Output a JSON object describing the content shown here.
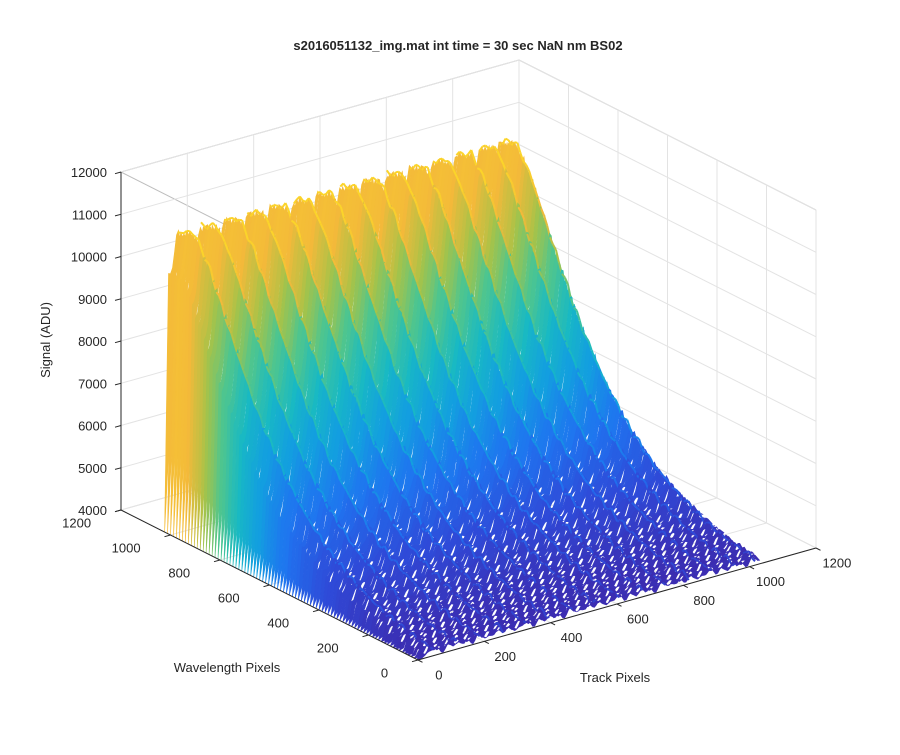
{
  "chart_data": {
    "type": "surface",
    "title": "s2016051132_img.mat int time = 30 sec  NaN nm BS02",
    "xlabel": "Track Pixels",
    "ylabel": "Wavelength Pixels",
    "zlabel": "Signal (ADU)",
    "xlim": [
      0,
      1200
    ],
    "ylim": [
      0,
      1200
    ],
    "zlim": [
      4000,
      12000
    ],
    "xticks": [
      "0",
      "200",
      "400",
      "600",
      "800",
      "1000",
      "1200"
    ],
    "yticks": [
      "0",
      "200",
      "400",
      "600",
      "800",
      "1000",
      "1200"
    ],
    "zticks": [
      "4000",
      "5000",
      "6000",
      "7000",
      "8000",
      "9000",
      "10000",
      "11000",
      "12000"
    ],
    "colormap": [
      "#3e26a8",
      "#2f4ad8",
      "#1f74f0",
      "#139ee0",
      "#18b9c4",
      "#4ec58f",
      "#a7c348",
      "#f3b93a",
      "#fbd42a"
    ],
    "grid": true,
    "surface_extent": {
      "track_pixels": [
        0,
        1024
      ],
      "wavelength_pixels": [
        0,
        1024
      ]
    },
    "profile_along_track": {
      "wavelength_pixel": [
        0,
        100,
        200,
        300,
        400,
        500,
        600,
        700,
        800,
        900,
        960,
        1024
      ],
      "peak_signal_ADU": [
        4200,
        4300,
        4500,
        4800,
        5200,
        5800,
        6600,
        7700,
        9100,
        10600,
        11200,
        11000
      ],
      "baseline_signal_ADU": [
        4100,
        4150,
        4250,
        4400,
        4600,
        4900,
        5300,
        6000,
        7100,
        8400,
        9300,
        9500
      ]
    },
    "track_peak_positions": [
      40,
      110,
      180,
      250,
      320,
      390,
      460,
      530,
      600,
      670,
      740,
      810,
      880,
      950,
      1010
    ]
  }
}
